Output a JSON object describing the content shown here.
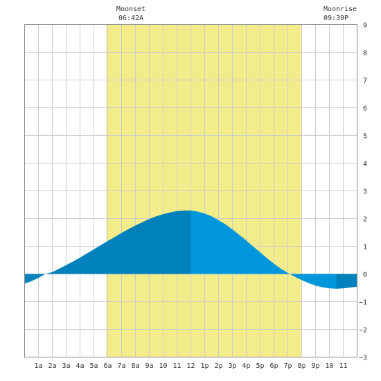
{
  "colors": {
    "grid": "#cccccc",
    "border": "#888888",
    "daylight": "#f3ec8a",
    "tide_dark": "#0081bc",
    "tide_light": "#0096db",
    "text": "#333333"
  },
  "moonset": {
    "label": "Moonset",
    "time": "06:42A"
  },
  "moonrise": {
    "label": "Moonrise",
    "time": "09:39P"
  },
  "chart_data": {
    "type": "area",
    "title": "",
    "xlabel": "",
    "ylabel": "",
    "xlim": [
      0,
      24
    ],
    "ylim": [
      -3,
      9
    ],
    "grid": true,
    "x_ticks": [
      {
        "x": 1,
        "label": "1a"
      },
      {
        "x": 2,
        "label": "2a"
      },
      {
        "x": 3,
        "label": "3a"
      },
      {
        "x": 4,
        "label": "4a"
      },
      {
        "x": 5,
        "label": "5a"
      },
      {
        "x": 6,
        "label": "6a"
      },
      {
        "x": 7,
        "label": "7a"
      },
      {
        "x": 8,
        "label": "8a"
      },
      {
        "x": 9,
        "label": "9a"
      },
      {
        "x": 10,
        "label": "10"
      },
      {
        "x": 11,
        "label": "11"
      },
      {
        "x": 12,
        "label": "12"
      },
      {
        "x": 13,
        "label": "1p"
      },
      {
        "x": 14,
        "label": "2p"
      },
      {
        "x": 15,
        "label": "3p"
      },
      {
        "x": 16,
        "label": "4p"
      },
      {
        "x": 17,
        "label": "5p"
      },
      {
        "x": 18,
        "label": "6p"
      },
      {
        "x": 19,
        "label": "7p"
      },
      {
        "x": 20,
        "label": "8p"
      },
      {
        "x": 21,
        "label": "9p"
      },
      {
        "x": 22,
        "label": "10"
      },
      {
        "x": 23,
        "label": "11"
      }
    ],
    "y_ticks": [
      {
        "y": 9,
        "label": "9"
      },
      {
        "y": 8,
        "label": "8"
      },
      {
        "y": 7,
        "label": "7"
      },
      {
        "y": 6,
        "label": "6"
      },
      {
        "y": 5,
        "label": "5"
      },
      {
        "y": 4,
        "label": "4"
      },
      {
        "y": 3,
        "label": "3"
      },
      {
        "y": 2,
        "label": "2"
      },
      {
        "y": 1,
        "label": "1"
      },
      {
        "y": 0,
        "label": "0"
      },
      {
        "y": -1,
        "label": "−1"
      },
      {
        "y": -2,
        "label": "−2"
      },
      {
        "y": -3,
        "label": "−3"
      }
    ],
    "daylight": {
      "start": 5.9,
      "end": 19.95
    },
    "tide_split_hour": 12,
    "series": [
      {
        "x": [
          0,
          0.5,
          1,
          1.5,
          2,
          2.5,
          3,
          3.5,
          4,
          4.5,
          5,
          5.5,
          6,
          6.5,
          7,
          7.5,
          8,
          8.5,
          9,
          9.5,
          10,
          10.5,
          11,
          11.5,
          12,
          12.5,
          13,
          13.5,
          14,
          14.5,
          15,
          15.5,
          16,
          16.5,
          17,
          17.5,
          18,
          18.5,
          19,
          19.5,
          20,
          20.5,
          21,
          21.5,
          22,
          22.5,
          23,
          23.5,
          24
        ],
        "y": [
          -0.35,
          -0.26,
          -0.14,
          0.0,
          0.07,
          0.19,
          0.32,
          0.45,
          0.59,
          0.74,
          0.89,
          1.04,
          1.19,
          1.33,
          1.48,
          1.62,
          1.75,
          1.87,
          1.98,
          2.08,
          2.16,
          2.22,
          2.27,
          2.29,
          2.29,
          2.25,
          2.18,
          2.08,
          1.94,
          1.79,
          1.61,
          1.41,
          1.21,
          0.99,
          0.78,
          0.57,
          0.37,
          0.19,
          0.04,
          -0.1,
          -0.22,
          -0.33,
          -0.42,
          -0.48,
          -0.52,
          -0.53,
          -0.52,
          -0.49,
          -0.46
        ]
      }
    ]
  }
}
